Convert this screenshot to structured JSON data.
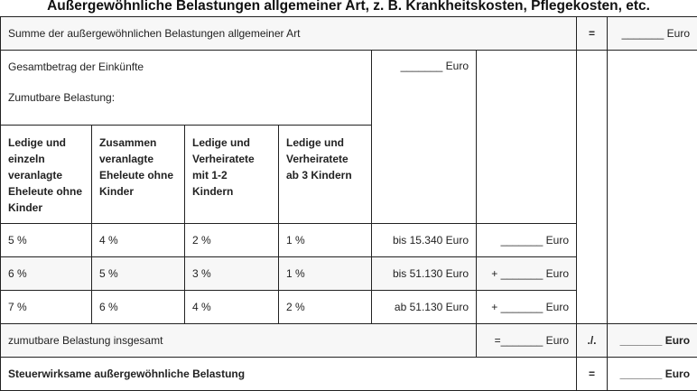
{
  "title": "Außergewöhnliche Belastungen allgemeiner Art, z. B. Krankheitskosten, Pflegekosten, etc.",
  "summe": {
    "label": "Summe der außergewöhnlichen Belastungen allgemeiner Art",
    "op": "=",
    "value": "_______ Euro"
  },
  "gesamtbetrag": {
    "label": "Gesamtbetrag der Einkünfte",
    "value": "_______ Euro"
  },
  "zumutbar_label": "Zumutbare Belastung:",
  "headers": [
    "Ledige und einzeln veranlagte Eheleute ohne Kinder",
    "Zusammen veranlagte Eheleute ohne Kinder",
    "Ledige und Verheiratete mit 1-2 Kindern",
    "Ledige und Verheiratete ab 3 Kindern"
  ],
  "rows": [
    {
      "p": [
        "5 %",
        "4 %",
        "2 %",
        "1 %"
      ],
      "range": "bis 15.340 Euro",
      "amount": "_______ Euro"
    },
    {
      "p": [
        "6 %",
        "5 %",
        "3 %",
        "1 %"
      ],
      "range": "bis 51.130 Euro",
      "amount": "+ _______ Euro"
    },
    {
      "p": [
        "7 %",
        "6 %",
        "4 %",
        "2 %"
      ],
      "range": "ab 51.130 Euro",
      "amount": "+ _______ Euro"
    }
  ],
  "insgesamt": {
    "label": "zumutbare Belastung insgesamt",
    "amount": "=_______ Euro",
    "op": "./.",
    "value": "_______ Euro"
  },
  "steuerwirksam": {
    "label": "Steuerwirksame außergewöhnliche Belastung",
    "op": "=",
    "value": "_______ Euro"
  }
}
